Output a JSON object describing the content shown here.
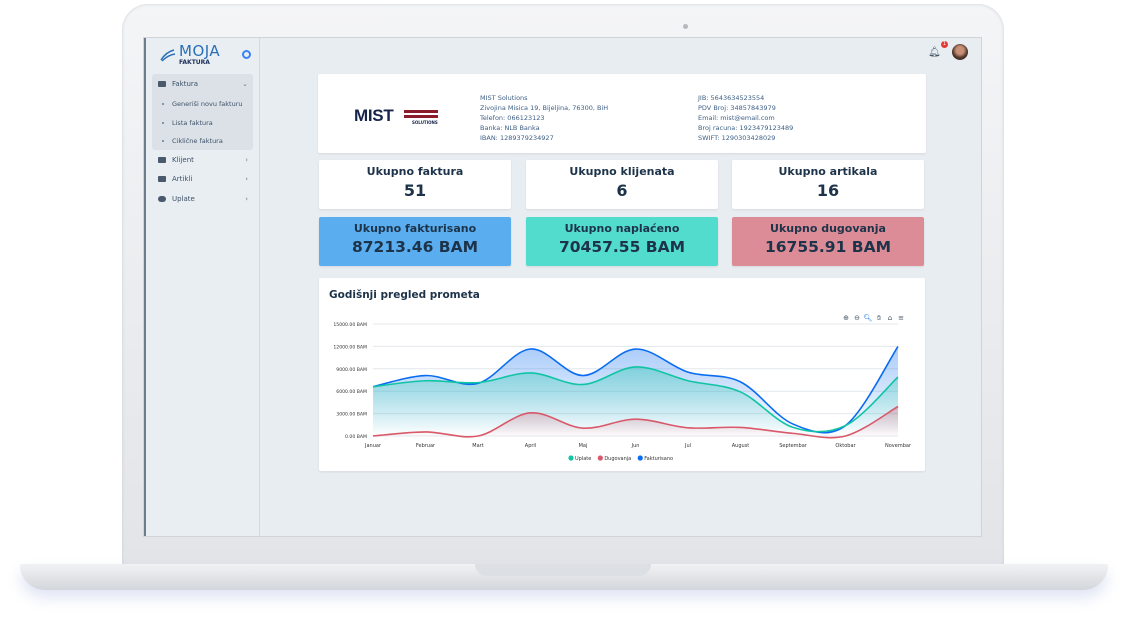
{
  "logo": {
    "line1": "MOJA",
    "line2": "FAKTURA"
  },
  "sidebar": {
    "items": [
      {
        "label": "Faktura",
        "icon": "invoice-icon",
        "expanded": true,
        "children": [
          "Generiši novu fakturu",
          "Lista faktura",
          "Ciklične faktura"
        ]
      },
      {
        "label": "Klijent",
        "icon": "briefcase-icon"
      },
      {
        "label": "Artikli",
        "icon": "keyboard-icon"
      },
      {
        "label": "Uplate",
        "icon": "coins-icon"
      }
    ]
  },
  "header": {
    "notifications": "1"
  },
  "company": {
    "logo_text": "MIST",
    "logo_sub": "SOLUTIONS",
    "left": [
      "MIST Solutions",
      "Zivojina Misica 19, Bijeljina, 76300, BiH",
      "Telefon: 066123123",
      "Banka: NLB Banka",
      "IBAN: 1289379234927"
    ],
    "right": [
      "JIB: 5643634523554",
      "PDV Broj: 34857843979",
      "Email: mist@email.com",
      "Broj racuna: 1923479123489",
      "SWIFT: 1290303428029"
    ]
  },
  "stats": [
    {
      "title": "Ukupno faktura",
      "value": "51"
    },
    {
      "title": "Ukupno klijenata",
      "value": "6"
    },
    {
      "title": "Ukupno artikala",
      "value": "16"
    }
  ],
  "totals": [
    {
      "title": "Ukupno fakturisano",
      "value": "87213.46 BAM",
      "color": "#5aaef0"
    },
    {
      "title": "Ukupno naplaćeno",
      "value": "70457.55 BAM",
      "color": "#52dccd"
    },
    {
      "title": "Ukupno dugovanja",
      "value": "16755.91 BAM",
      "color": "#dc8c97"
    }
  ],
  "chart_data": {
    "type": "area",
    "title": "Godišnji pregled prometa",
    "categories": [
      "Januar",
      "Februar",
      "Mart",
      "April",
      "Maj",
      "Jun",
      "Jul",
      "August",
      "Septembar",
      "Oktobar",
      "Novembar"
    ],
    "ylim": [
      0,
      15000
    ],
    "yticks": [
      "0.00 BAM",
      "3000.00 BAM",
      "6000.00 BAM",
      "9000.00 BAM",
      "12000.00 BAM",
      "15000.00 BAM"
    ],
    "legend": "bottom",
    "grid": true,
    "series": [
      {
        "name": "Uplate",
        "color": "#10c4a4",
        "values": [
          6600,
          7400,
          7150,
          8450,
          6900,
          9250,
          7400,
          5900,
          1150,
          1400,
          7900
        ]
      },
      {
        "name": "Dugovanja",
        "color": "#d9586a",
        "values": [
          0,
          550,
          0,
          3100,
          1050,
          2250,
          1100,
          1150,
          350,
          0,
          3950
        ]
      },
      {
        "name": "Fakturisano",
        "color": "#0a6cf0",
        "values": [
          6600,
          8100,
          7050,
          11650,
          8100,
          11650,
          8550,
          7250,
          1600,
          1400,
          12000
        ]
      }
    ]
  }
}
